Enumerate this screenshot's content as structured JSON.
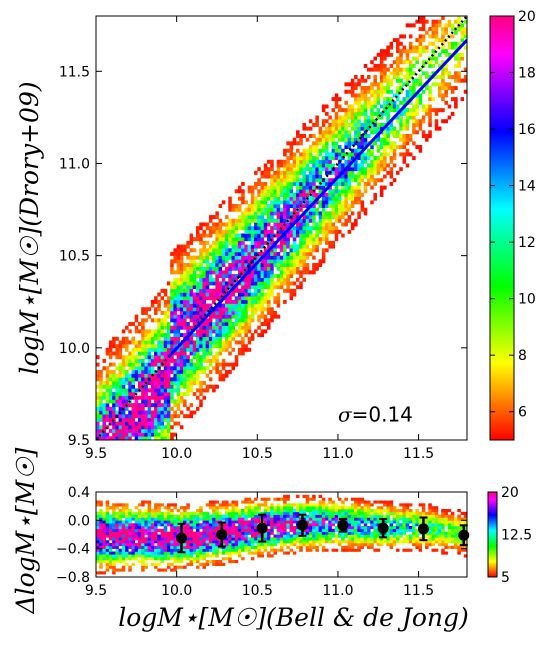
{
  "chart_data": [
    {
      "type": "heatmap",
      "title": "",
      "xlabel": "logM⋆[M☉](Bell & de Jong)",
      "ylabel": "logM⋆[M☉](Drory+09)",
      "xlim": [
        9.5,
        11.8
      ],
      "ylim": [
        9.5,
        11.8
      ],
      "xticks": [
        "9.5",
        "10.0",
        "10.5",
        "11.0",
        "11.5"
      ],
      "yticks": [
        "9.5",
        "10.0",
        "10.5",
        "11.0",
        "11.5"
      ],
      "grid": false,
      "colorbar": {
        "range": [
          5,
          20
        ],
        "ticks": [
          "6",
          "8",
          "10",
          "12",
          "14",
          "16",
          "18",
          "20"
        ],
        "colormap": "hsv"
      },
      "lines": [
        {
          "style": "dotted",
          "color": "#000000",
          "x": [
            9.5,
            11.8
          ],
          "y": [
            9.5,
            11.8
          ]
        },
        {
          "style": "solid",
          "color": "#0000ff",
          "x": [
            9.95,
            11.8
          ],
          "y": [
            9.95,
            11.67
          ]
        }
      ],
      "annotation": {
        "text_symbol": "σ",
        "text_value": "=0.14",
        "x": 11.0,
        "y": 9.6
      }
    },
    {
      "type": "heatmap",
      "title": "",
      "xlabel": "logM⋆[M☉](Bell & de Jong)",
      "ylabel": "ΔlogM⋆[M☉]",
      "xlim": [
        9.5,
        11.8
      ],
      "ylim": [
        -0.8,
        0.4
      ],
      "xticks": [
        "9.5",
        "10.0",
        "10.5",
        "11.0",
        "11.5"
      ],
      "yticks": [
        "0.4",
        "0.0",
        "−0.4",
        "−0.8"
      ],
      "grid": false,
      "colorbar": {
        "range": [
          5,
          20
        ],
        "ticks": [
          "20",
          "12.5",
          "5"
        ],
        "colormap": "hsv"
      },
      "errorbar_series": {
        "x": [
          10.03,
          10.28,
          10.53,
          10.78,
          11.03,
          11.28,
          11.53,
          11.78
        ],
        "y": [
          -0.25,
          -0.2,
          -0.11,
          -0.07,
          -0.07,
          -0.11,
          -0.12,
          -0.21
        ],
        "err": [
          0.2,
          0.17,
          0.19,
          0.15,
          0.09,
          0.13,
          0.16,
          0.14
        ]
      }
    }
  ]
}
